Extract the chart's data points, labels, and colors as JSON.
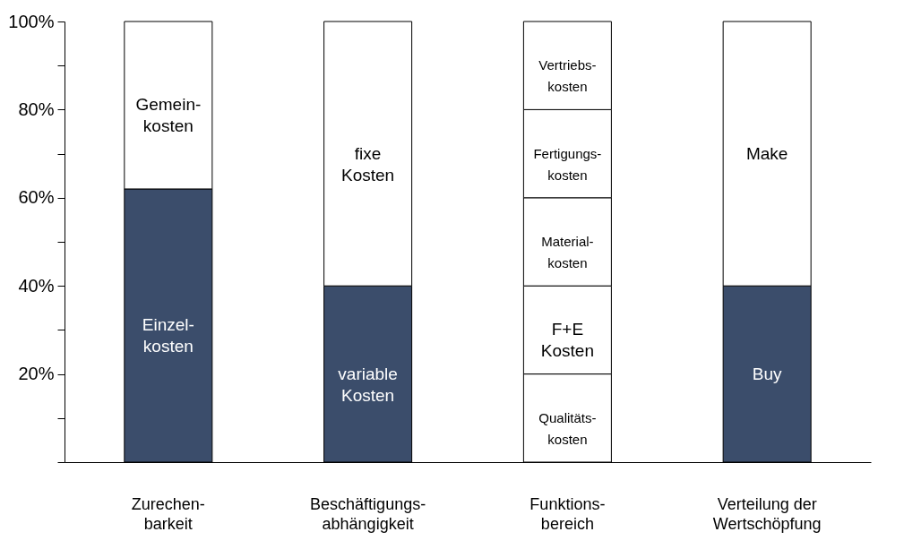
{
  "chart_data": {
    "type": "bar",
    "stacked": true,
    "categories": [
      "Zurechen-\nbarkeit",
      "Beschäftigungs-\nabhängigkeit",
      "Funktions-\nbereich",
      "Verteilung der\nWertschöpfung"
    ],
    "series": [
      {
        "colors": [
          "#3b4d6b",
          "#3b4d6b",
          "#ffffff",
          "#3b4d6b"
        ],
        "values": [
          62,
          40,
          20,
          40
        ],
        "value_labels": [
          "Einzel-\nkosten",
          "variable\nKosten",
          "Qualitäts-\nkosten",
          "Buy"
        ]
      },
      {
        "colors": [
          "#ffffff",
          "#ffffff",
          "#ffffff",
          "#ffffff"
        ],
        "values": [
          38,
          60,
          20,
          60
        ],
        "value_labels": [
          "Gemein-\nkosten",
          "fixe\nKosten",
          "F+E\nKosten",
          "Make"
        ]
      },
      {
        "colors": [
          null,
          null,
          "#ffffff",
          null
        ],
        "values": [
          null,
          null,
          20,
          null
        ],
        "value_labels": [
          null,
          null,
          "Material-\nkosten",
          null
        ]
      },
      {
        "colors": [
          null,
          null,
          "#ffffff",
          null
        ],
        "values": [
          null,
          null,
          20,
          null
        ],
        "value_labels": [
          null,
          null,
          "Fertigungs-\nkosten",
          null
        ]
      },
      {
        "colors": [
          null,
          null,
          "#ffffff",
          null
        ],
        "values": [
          null,
          null,
          20,
          null
        ],
        "value_labels": [
          null,
          null,
          "Vertriebs-\nkosten",
          null
        ]
      }
    ],
    "ylim": [
      0,
      100
    ],
    "yticks": [
      {
        "value": 0,
        "label": null
      },
      {
        "value": 10,
        "label": null
      },
      {
        "value": 20,
        "label": "20%"
      },
      {
        "value": 30,
        "label": null
      },
      {
        "value": 40,
        "label": "40%"
      },
      {
        "value": 50,
        "label": null
      },
      {
        "value": 60,
        "label": "60%"
      },
      {
        "value": 70,
        "label": null
      },
      {
        "value": 80,
        "label": "80%"
      },
      {
        "value": 90,
        "label": null
      },
      {
        "value": 100,
        "label": "100%"
      }
    ],
    "grid": false
  }
}
